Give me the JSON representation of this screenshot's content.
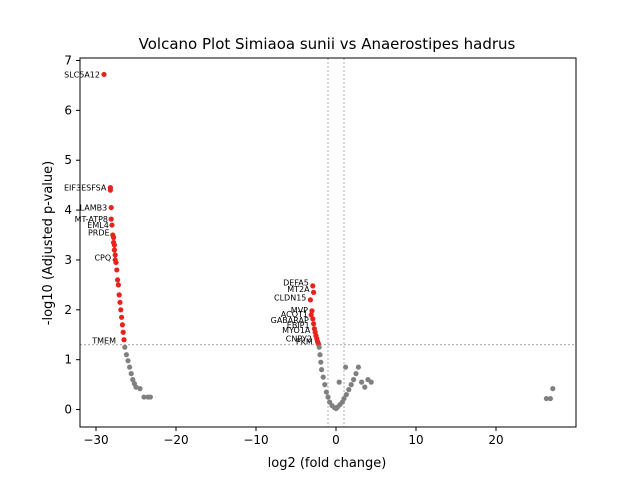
{
  "chart_data": {
    "type": "scatter",
    "title": "Volcano Plot Simiaoa sunii vs Anaerostipes hadrus",
    "xlabel": "log2 (fold change)",
    "ylabel": "-log10 (Adjusted p-value)",
    "xlim": [
      -32,
      30
    ],
    "ylim": [
      -0.35,
      7.05
    ],
    "x_ticks": [
      -30,
      -20,
      -10,
      0,
      10,
      20
    ],
    "x_tick_labels": [
      "−30",
      "−20",
      "−10",
      "0",
      "10",
      "20"
    ],
    "y_ticks": [
      0,
      1,
      2,
      3,
      4,
      5,
      6,
      7
    ],
    "y_tick_labels": [
      "0",
      "1",
      "2",
      "3",
      "4",
      "5",
      "6",
      "7"
    ],
    "threshold_lines": {
      "x": [
        -1,
        1
      ],
      "y": 1.3
    },
    "colors": {
      "significant": "#e8221c",
      "non_significant": "#808080",
      "guide": "#888888"
    },
    "series": [
      {
        "name": "significant",
        "color": "#e8221c",
        "points": [
          [
            -29,
            6.72
          ],
          [
            -28.2,
            4.45
          ],
          [
            -28.2,
            4.4
          ],
          [
            -28.1,
            4.05
          ],
          [
            -28.1,
            3.82
          ],
          [
            -28.0,
            3.7
          ],
          [
            -27.9,
            3.5
          ],
          [
            -27.8,
            3.45
          ],
          [
            -27.8,
            3.35
          ],
          [
            -27.7,
            3.3
          ],
          [
            -27.7,
            3.2
          ],
          [
            -27.6,
            3.1
          ],
          [
            -27.6,
            3.0
          ],
          [
            -27.5,
            2.95
          ],
          [
            -27.4,
            2.8
          ],
          [
            -27.3,
            2.6
          ],
          [
            -27.2,
            2.5
          ],
          [
            -27.1,
            2.3
          ],
          [
            -27.0,
            2.15
          ],
          [
            -26.9,
            2.0
          ],
          [
            -26.8,
            1.85
          ],
          [
            -26.7,
            1.7
          ],
          [
            -26.6,
            1.55
          ],
          [
            -26.5,
            1.4
          ],
          [
            -2.9,
            2.48
          ],
          [
            -2.8,
            2.35
          ],
          [
            -3.2,
            2.2
          ],
          [
            -3.0,
            1.98
          ],
          [
            -3.1,
            1.9
          ],
          [
            -2.9,
            1.82
          ],
          [
            -2.8,
            1.72
          ],
          [
            -2.7,
            1.62
          ],
          [
            -2.6,
            1.55
          ],
          [
            -2.5,
            1.48
          ],
          [
            -2.4,
            1.42
          ],
          [
            -2.3,
            1.36
          ],
          [
            -2.2,
            1.32
          ]
        ]
      },
      {
        "name": "non-significant",
        "color": "#808080",
        "points": [
          [
            -26.4,
            1.25
          ],
          [
            -26.2,
            1.1
          ],
          [
            -26.0,
            0.98
          ],
          [
            -25.8,
            0.85
          ],
          [
            -25.6,
            0.72
          ],
          [
            -25.4,
            0.6
          ],
          [
            -25.2,
            0.52
          ],
          [
            -25.0,
            0.45
          ],
          [
            -24.5,
            0.42
          ],
          [
            -24.0,
            0.25
          ],
          [
            -23.5,
            0.25
          ],
          [
            -23.2,
            0.25
          ],
          [
            -2.1,
            1.25
          ],
          [
            -2.0,
            1.1
          ],
          [
            -1.9,
            0.95
          ],
          [
            -1.8,
            0.8
          ],
          [
            -1.6,
            0.65
          ],
          [
            -1.4,
            0.5
          ],
          [
            -1.2,
            0.35
          ],
          [
            -1.0,
            0.25
          ],
          [
            -0.8,
            0.15
          ],
          [
            -0.5,
            0.08
          ],
          [
            -0.2,
            0.04
          ],
          [
            0.0,
            0.02
          ],
          [
            0.2,
            0.05
          ],
          [
            0.5,
            0.1
          ],
          [
            0.8,
            0.15
          ],
          [
            1.0,
            0.22
          ],
          [
            1.3,
            0.3
          ],
          [
            1.6,
            0.4
          ],
          [
            1.9,
            0.5
          ],
          [
            2.2,
            0.6
          ],
          [
            2.5,
            0.72
          ],
          [
            2.8,
            0.85
          ],
          [
            3.2,
            0.55
          ],
          [
            3.6,
            0.45
          ],
          [
            4.0,
            0.6
          ],
          [
            4.4,
            0.55
          ],
          [
            1.2,
            0.85
          ],
          [
            0.4,
            0.55
          ],
          [
            26.3,
            0.22
          ],
          [
            26.8,
            0.22
          ],
          [
            27.1,
            0.42
          ]
        ]
      }
    ],
    "labels": [
      {
        "text": "SLC5A12",
        "x": -29,
        "y": 6.72
      },
      {
        "text": "EIF3ESFSA",
        "x": -28.2,
        "y": 4.45
      },
      {
        "text": "LAMB3",
        "x": -28.1,
        "y": 4.05
      },
      {
        "text": "MT-ATP8",
        "x": -28.0,
        "y": 3.82
      },
      {
        "text": "EML4",
        "x": -27.9,
        "y": 3.7
      },
      {
        "text": "PRDE",
        "x": -27.8,
        "y": 3.55
      },
      {
        "text": "CPQ",
        "x": -27.6,
        "y": 3.05
      },
      {
        "text": "TMEM",
        "x": -27.0,
        "y": 1.38
      },
      {
        "text": "DEFA5",
        "x": -2.9,
        "y": 2.55
      },
      {
        "text": "MT2A",
        "x": -2.8,
        "y": 2.42
      },
      {
        "text": "CLDN15",
        "x": -3.2,
        "y": 2.25
      },
      {
        "text": "MVP",
        "x": -3.0,
        "y": 2.0
      },
      {
        "text": "ACOT1",
        "x": -3.0,
        "y": 1.92
      },
      {
        "text": "GABARAP",
        "x": -2.9,
        "y": 1.8
      },
      {
        "text": "EBIP1",
        "x": -2.8,
        "y": 1.7
      },
      {
        "text": "MYO1A",
        "x": -2.7,
        "y": 1.6
      },
      {
        "text": "CNPY2",
        "x": -2.5,
        "y": 1.42
      },
      {
        "text": "PKM",
        "x": -2.4,
        "y": 1.36
      }
    ]
  }
}
